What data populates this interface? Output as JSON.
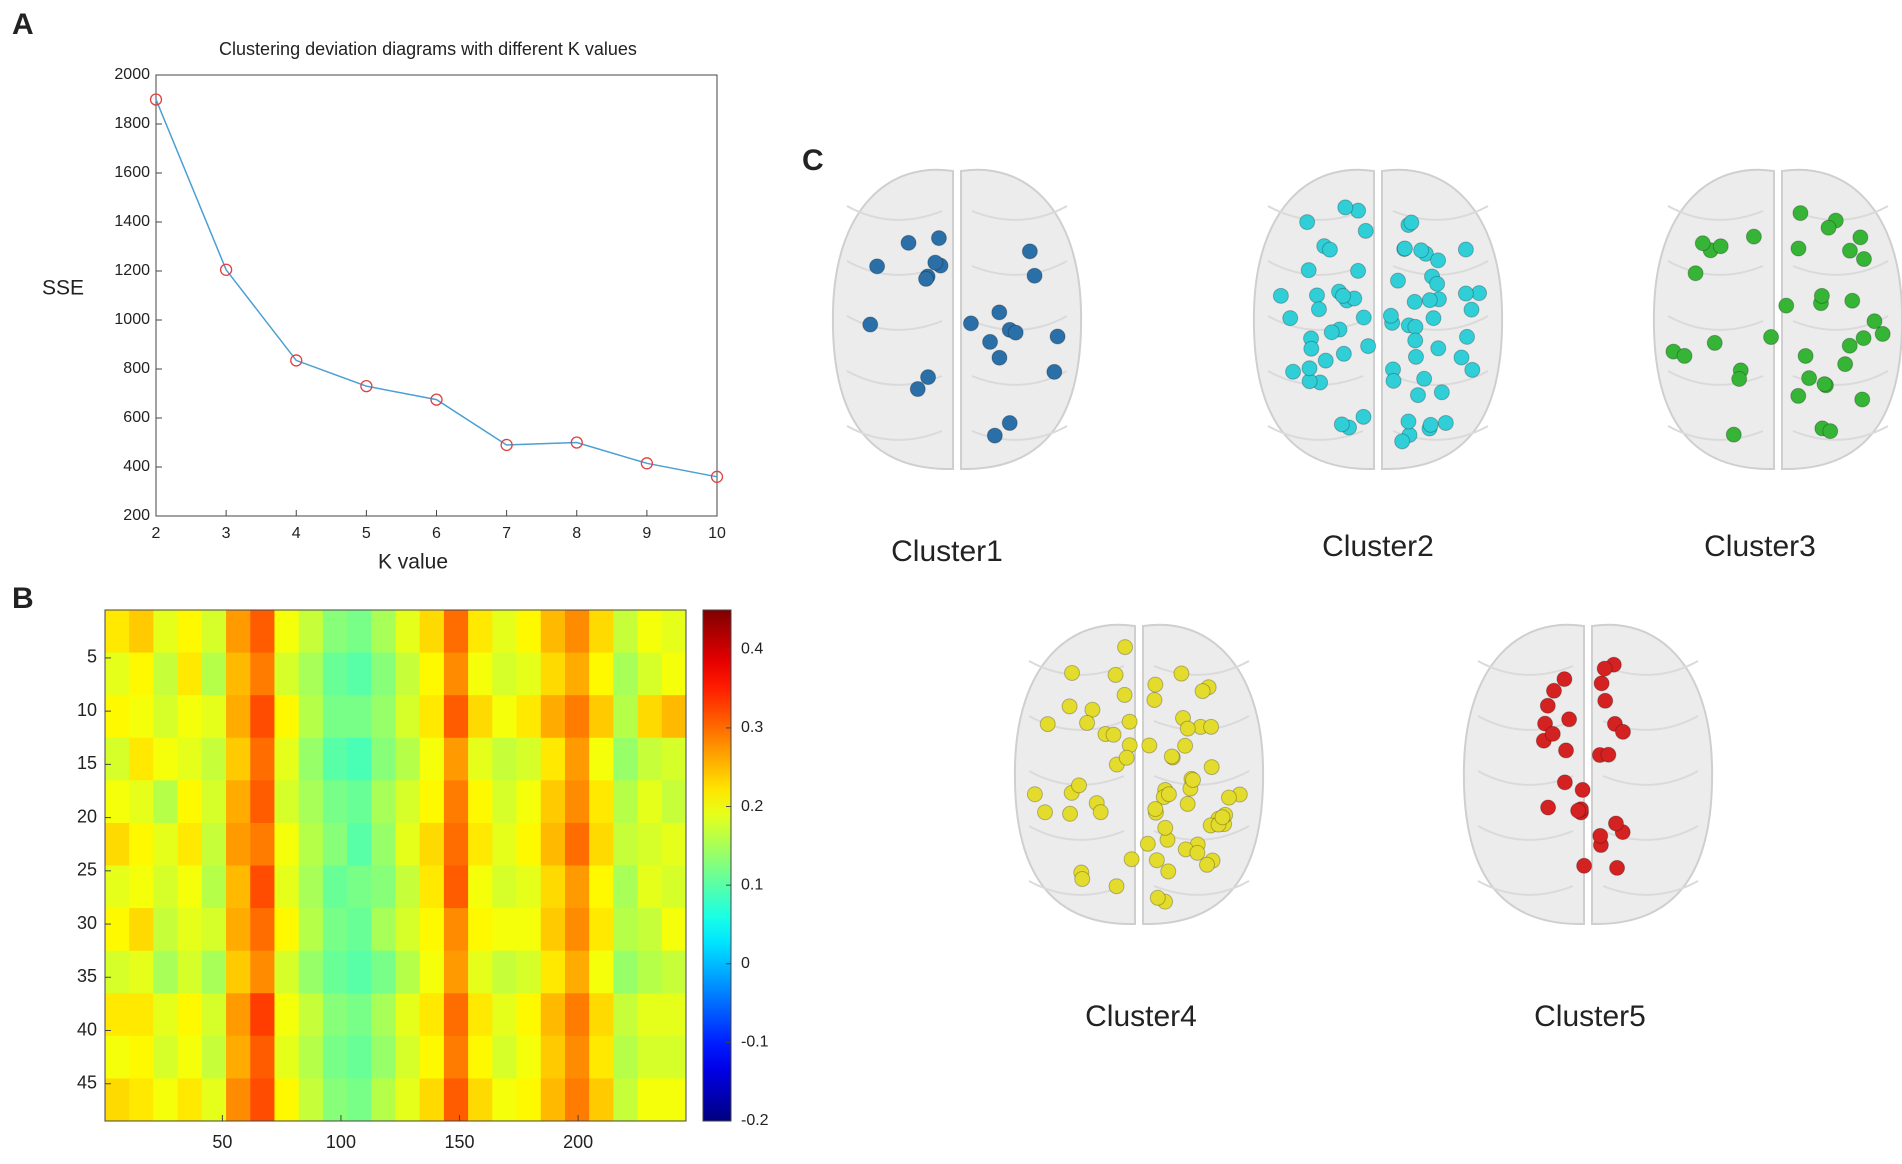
{
  "panels": [
    "A",
    "B",
    "C"
  ],
  "chart_data": [
    {
      "type": "line",
      "title": "Clustering deviation diagrams with different K values",
      "xlabel": "K value",
      "ylabel": "SSE",
      "x": [
        2,
        3,
        4,
        5,
        6,
        7,
        8,
        9,
        10
      ],
      "series": [
        {
          "color": "#4a9fd4",
          "marker_color": "#e04040",
          "values": [
            1900,
            1205,
            835,
            730,
            675,
            490,
            500,
            415,
            360
          ]
        }
      ],
      "xlim": [
        2,
        10
      ],
      "xticks": [
        2,
        3,
        4,
        5,
        6,
        7,
        8,
        9,
        10
      ],
      "ylim": [
        200,
        2000
      ],
      "yticks": [
        200,
        400,
        600,
        800,
        1000,
        1200,
        1400,
        1600,
        1800,
        2000
      ]
    },
    {
      "type": "heatmap",
      "xlim": [
        0.5,
        245.5
      ],
      "xticks": [
        50,
        100,
        150,
        200
      ],
      "ylim": [
        0.5,
        48.5
      ],
      "yticks": [
        5,
        10,
        15,
        20,
        25,
        30,
        35,
        40,
        45
      ],
      "clim": [
        -0.2,
        0.45
      ],
      "cticks": [
        -0.2,
        -0.1,
        0,
        0.1,
        0.2,
        0.3,
        0.4
      ],
      "values": [
        [
          0.22,
          0.24,
          0.19,
          0.21,
          0.18,
          0.27,
          0.31,
          0.2,
          0.17,
          0.13,
          0.12,
          0.15,
          0.19,
          0.23,
          0.3,
          0.22,
          0.19,
          0.21,
          0.25,
          0.28,
          0.23,
          0.17,
          0.2,
          0.19
        ],
        [
          0.19,
          0.21,
          0.17,
          0.22,
          0.16,
          0.25,
          0.29,
          0.18,
          0.15,
          0.11,
          0.1,
          0.13,
          0.17,
          0.21,
          0.28,
          0.2,
          0.18,
          0.19,
          0.23,
          0.26,
          0.21,
          0.15,
          0.18,
          0.2
        ],
        [
          0.21,
          0.2,
          0.18,
          0.2,
          0.19,
          0.26,
          0.32,
          0.21,
          0.16,
          0.12,
          0.12,
          0.14,
          0.18,
          0.22,
          0.31,
          0.23,
          0.2,
          0.22,
          0.26,
          0.29,
          0.24,
          0.16,
          0.23,
          0.25
        ],
        [
          0.18,
          0.22,
          0.2,
          0.19,
          0.17,
          0.24,
          0.3,
          0.19,
          0.14,
          0.1,
          0.09,
          0.13,
          0.16,
          0.2,
          0.27,
          0.19,
          0.17,
          0.18,
          0.22,
          0.27,
          0.2,
          0.14,
          0.17,
          0.18
        ],
        [
          0.2,
          0.19,
          0.16,
          0.21,
          0.18,
          0.26,
          0.31,
          0.18,
          0.15,
          0.12,
          0.11,
          0.15,
          0.18,
          0.21,
          0.29,
          0.21,
          0.18,
          0.2,
          0.24,
          0.28,
          0.22,
          0.16,
          0.19,
          0.17
        ],
        [
          0.23,
          0.21,
          0.19,
          0.22,
          0.17,
          0.27,
          0.29,
          0.2,
          0.16,
          0.13,
          0.1,
          0.14,
          0.19,
          0.23,
          0.3,
          0.22,
          0.19,
          0.21,
          0.25,
          0.3,
          0.23,
          0.17,
          0.18,
          0.19
        ],
        [
          0.19,
          0.2,
          0.18,
          0.2,
          0.16,
          0.25,
          0.32,
          0.19,
          0.15,
          0.11,
          0.12,
          0.13,
          0.17,
          0.22,
          0.31,
          0.2,
          0.18,
          0.19,
          0.23,
          0.27,
          0.21,
          0.15,
          0.19,
          0.18
        ],
        [
          0.21,
          0.23,
          0.17,
          0.19,
          0.18,
          0.26,
          0.3,
          0.21,
          0.16,
          0.12,
          0.11,
          0.15,
          0.18,
          0.21,
          0.28,
          0.21,
          0.2,
          0.2,
          0.24,
          0.28,
          0.22,
          0.16,
          0.17,
          0.2
        ],
        [
          0.18,
          0.19,
          0.15,
          0.18,
          0.15,
          0.24,
          0.28,
          0.18,
          0.14,
          0.11,
          0.1,
          0.12,
          0.16,
          0.2,
          0.27,
          0.19,
          0.17,
          0.18,
          0.22,
          0.26,
          0.2,
          0.14,
          0.16,
          0.17
        ],
        [
          0.22,
          0.22,
          0.19,
          0.21,
          0.18,
          0.27,
          0.33,
          0.2,
          0.17,
          0.13,
          0.12,
          0.15,
          0.19,
          0.22,
          0.3,
          0.22,
          0.19,
          0.21,
          0.25,
          0.29,
          0.23,
          0.17,
          0.19,
          0.19
        ],
        [
          0.2,
          0.21,
          0.18,
          0.2,
          0.17,
          0.26,
          0.31,
          0.19,
          0.16,
          0.12,
          0.11,
          0.14,
          0.18,
          0.21,
          0.29,
          0.21,
          0.18,
          0.2,
          0.24,
          0.28,
          0.22,
          0.16,
          0.18,
          0.18
        ],
        [
          0.23,
          0.22,
          0.2,
          0.22,
          0.19,
          0.28,
          0.32,
          0.21,
          0.17,
          0.13,
          0.12,
          0.16,
          0.19,
          0.23,
          0.31,
          0.23,
          0.2,
          0.21,
          0.25,
          0.29,
          0.24,
          0.17,
          0.2,
          0.2
        ]
      ]
    }
  ],
  "brains": [
    {
      "label": "Cluster1",
      "color": "#2a6fa8"
    },
    {
      "label": "Cluster2",
      "color": "#30cfd8"
    },
    {
      "label": "Cluster3",
      "color": "#36b436"
    },
    {
      "label": "Cluster4",
      "color": "#e4dc2c"
    },
    {
      "label": "Cluster5",
      "color": "#d42222"
    }
  ]
}
